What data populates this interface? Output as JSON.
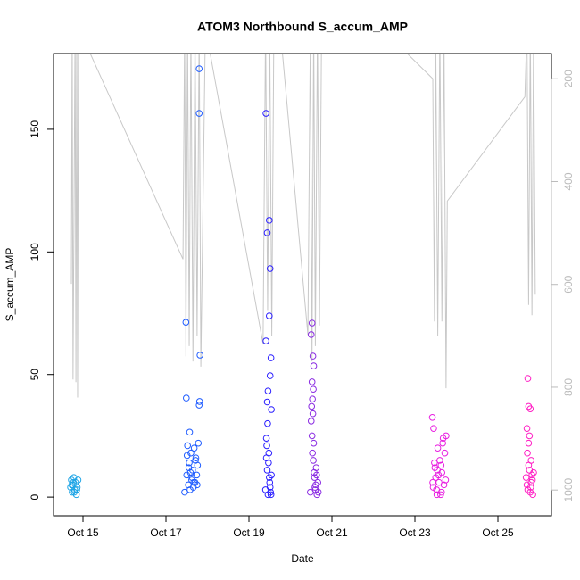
{
  "chart_data": {
    "type": "scatter",
    "title": "ATOM3 Northbound S_accum_AMP",
    "x_label": "Date",
    "y_label": "S_accum_AMP",
    "xlim": [
      14.29,
      26.29
    ],
    "xticks": [
      {
        "value": 15,
        "label": "Oct 15"
      },
      {
        "value": 17,
        "label": "Oct 17"
      },
      {
        "value": 19,
        "label": "Oct 19"
      },
      {
        "value": 21,
        "label": "Oct 21"
      },
      {
        "value": 23,
        "label": "Oct 23"
      },
      {
        "value": 25,
        "label": "Oct 25"
      }
    ],
    "ylim": [
      -7.6,
      180.9
    ],
    "yticks": [
      0,
      50,
      100,
      150
    ],
    "y2lim": [
      1050,
      151
    ],
    "y2ticks": [
      200,
      400,
      600,
      800,
      1000
    ],
    "y2_color": "#bbbbbb",
    "series": [
      {
        "type": "line",
        "axis": "y2",
        "color": "#c8c8c8",
        "x": [
          14.72,
          14.74,
          14.76,
          14.81,
          14.83,
          14.85,
          14.87,
          14.89,
          17.41,
          17.45,
          17.48,
          17.52,
          17.56,
          17.6,
          17.65,
          17.7,
          17.75,
          17.8,
          17.84,
          17.95,
          19.34,
          19.4,
          19.45,
          19.5,
          19.55,
          19.6,
          19.75,
          20.42,
          20.48,
          20.52,
          20.56,
          20.6,
          20.65,
          20.7,
          20.75,
          22.55,
          23.43,
          23.47,
          23.5,
          23.55,
          23.6,
          23.65,
          23.7,
          23.75,
          23.78,
          25.65,
          25.7,
          25.74,
          25.78,
          25.82,
          25.86,
          25.9
        ],
        "values": [
          599,
          100,
          785,
          100,
          790,
          100,
          820,
          100,
          551,
          100,
          740,
          100,
          720,
          100,
          750,
          100,
          700,
          100,
          760,
          100,
          716,
          100,
          650,
          100,
          700,
          100,
          100,
          698,
          100,
          750,
          100,
          720,
          100,
          680,
          100,
          130,
          200,
          672,
          100,
          700,
          100,
          672,
          100,
          802,
          438,
          235,
          100,
          640,
          100,
          660,
          100,
          620
        ]
      },
      {
        "type": "scatter",
        "color": "#1fa5e6",
        "x": [
          14.7,
          14.72,
          14.74,
          14.76,
          14.78,
          14.8,
          14.82,
          14.84,
          14.86,
          14.88,
          14.73,
          14.79,
          14.85,
          14.77
        ],
        "values": [
          4,
          7,
          2,
          5,
          8,
          3,
          6,
          1,
          4,
          7,
          5,
          2,
          3,
          6
        ]
      },
      {
        "type": "scatter",
        "color": "#1f5cff",
        "x": [
          17.45,
          17.48,
          17.49,
          17.5,
          17.52,
          17.54,
          17.56,
          17.58,
          17.6,
          17.62,
          17.64,
          17.66,
          17.68,
          17.7,
          17.72,
          17.74,
          17.76,
          17.78,
          17.8,
          17.8,
          17.82,
          17.81,
          17.8,
          17.55,
          17.63,
          17.71,
          17.59,
          17.67,
          17.75,
          17.51,
          17.57
        ],
        "values": [
          2,
          71.3,
          40.4,
          9,
          21,
          5,
          14,
          3,
          18,
          7,
          11,
          4,
          20,
          6,
          16,
          9,
          13,
          22,
          174.7,
          156.5,
          57.9,
          39,
          37.5,
          12,
          8,
          15,
          10,
          6,
          5,
          17,
          26.5
        ]
      },
      {
        "type": "scatter",
        "color": "#2b1fff",
        "x": [
          19.41,
          19.49,
          19.44,
          19.51,
          19.49,
          19.41,
          19.53,
          19.51,
          19.46,
          19.44,
          19.54,
          19.4,
          19.42,
          19.44,
          19.46,
          19.48,
          19.5,
          19.52,
          19.54,
          19.43,
          19.47,
          19.51,
          19.45,
          19.49,
          19.53,
          19.42
        ],
        "values": [
          156.5,
          112.9,
          107.8,
          93.2,
          73.9,
          63.7,
          56.8,
          49.5,
          43.3,
          38.8,
          35.7,
          3,
          24,
          11,
          1,
          18,
          6,
          2,
          9,
          21,
          14,
          4,
          30,
          8,
          1,
          16
        ]
      },
      {
        "type": "scatter",
        "color": "#8a2be2",
        "x": [
          20.52,
          20.5,
          20.54,
          20.56,
          20.52,
          20.55,
          20.53,
          20.51,
          20.54,
          20.5,
          20.52,
          20.56,
          20.58,
          20.6,
          20.62,
          20.64,
          20.66,
          20.48,
          20.55,
          20.59,
          20.63,
          20.67,
          20.53,
          20.61,
          20.57
        ],
        "values": [
          71,
          66.3,
          57.5,
          53.5,
          47,
          44,
          40,
          37,
          34,
          31,
          25,
          22,
          8,
          3,
          12,
          1,
          6,
          2,
          15,
          4,
          9,
          2,
          18,
          5,
          10
        ]
      },
      {
        "type": "scatter",
        "color": "#e81fe0",
        "x": [
          23.42,
          23.45,
          23.48,
          23.5,
          23.52,
          23.55,
          23.58,
          23.6,
          23.62,
          23.65,
          23.68,
          23.7,
          23.72,
          23.75,
          23.44,
          23.54,
          23.64,
          23.74,
          23.47,
          23.57,
          23.67,
          23.43,
          23.53,
          23.63
        ],
        "values": [
          32.5,
          28,
          12,
          8,
          3,
          20,
          6,
          15,
          1,
          10,
          24,
          5,
          18,
          25,
          4,
          11,
          2,
          7,
          14,
          9,
          22,
          6,
          1,
          13
        ]
      },
      {
        "type": "scatter",
        "color": "#ff1fc4",
        "x": [
          25.72,
          25.74,
          25.78,
          25.7,
          25.76,
          25.74,
          25.8,
          25.68,
          25.72,
          25.76,
          25.8,
          25.84,
          25.86,
          25.7,
          25.74,
          25.78,
          25.82,
          25.71,
          25.79,
          25.83
        ],
        "values": [
          48.4,
          37,
          36,
          28,
          25,
          22,
          15,
          8,
          3,
          11,
          6,
          1,
          10,
          5,
          13,
          2,
          9,
          18,
          4,
          7
        ]
      }
    ]
  }
}
